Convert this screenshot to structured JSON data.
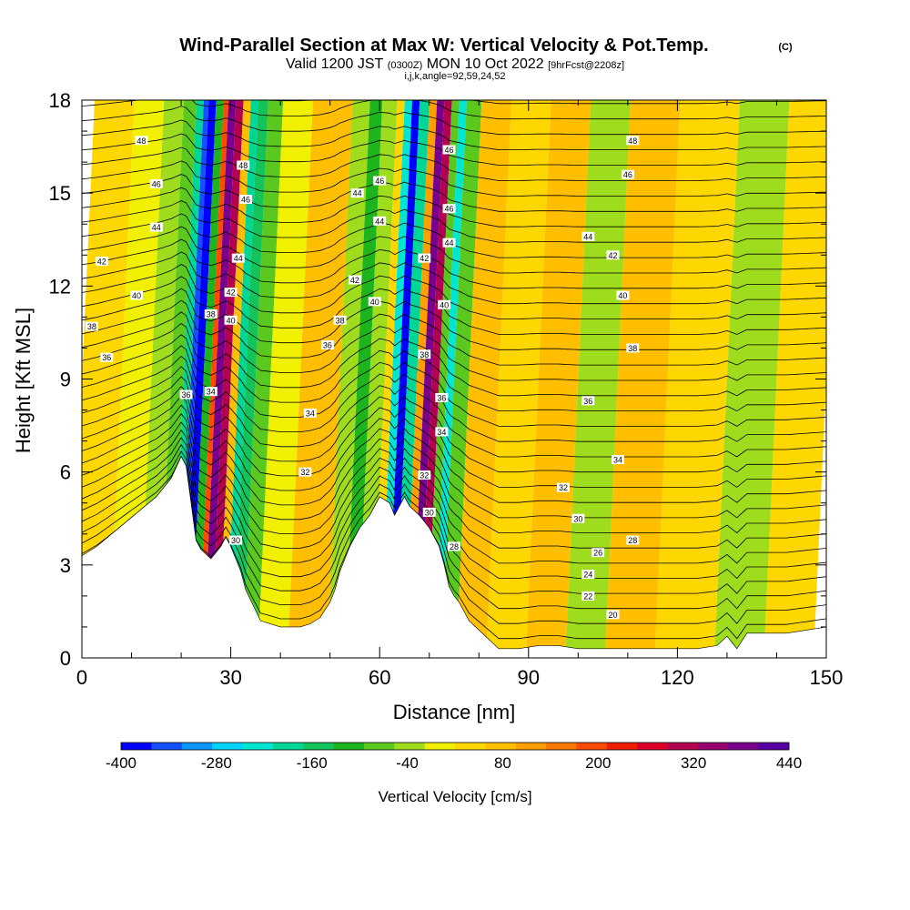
{
  "header": {
    "title": "Wind-Parallel Section at Max W: Vertical Velocity & Pot.Temp.",
    "copyright": "(C)",
    "valid_prefix": "Valid 1200 JST",
    "valid_utc": "(0300Z)",
    "valid_date": "MON 10 Oct 2022",
    "forecast": "[9hrFcst@2208z]",
    "params": "i,j,k,angle=92,59,24,52"
  },
  "chart_data": {
    "type": "heatmap",
    "xlabel": "Distance [nm]",
    "ylabel": "Height [Kft MSL]",
    "xlim": [
      0,
      150
    ],
    "ylim": [
      0,
      18
    ],
    "x_ticks": [
      0,
      30,
      60,
      90,
      120,
      150
    ],
    "y_ticks": [
      0,
      3,
      6,
      9,
      12,
      15,
      18
    ],
    "colorbar": {
      "label": "Vertical Velocity [cm/s]",
      "tick_labels": [
        "-400",
        "-280",
        "-160",
        "-40",
        "80",
        "200",
        "320",
        "440"
      ],
      "colors": [
        "#0000ff",
        "#1450ff",
        "#0a96ff",
        "#00d2ff",
        "#00e6d2",
        "#00d796",
        "#14c35a",
        "#1eb41e",
        "#5ac81e",
        "#a0dc1e",
        "#f0f000",
        "#ffd700",
        "#ffbe00",
        "#ffa000",
        "#ff7800",
        "#ff4b00",
        "#f01e00",
        "#dc0028",
        "#b40050",
        "#96006e",
        "#78008c",
        "#5a00a0"
      ]
    },
    "w_cells": {
      "note_units": "cm/s",
      "bands_x": [
        0,
        8,
        14,
        18,
        20.5,
        22,
        23,
        24.5,
        26,
        27,
        28.5,
        30,
        31.5,
        33,
        35,
        38,
        44,
        48,
        52,
        55.5,
        58,
        61,
        62.5,
        64,
        65.5,
        67.5,
        69,
        70.5,
        72,
        73.5,
        75,
        78,
        84,
        92,
        100,
        108,
        118,
        130,
        140,
        150
      ],
      "bands_w": [
        40,
        0,
        -20,
        -80,
        -200,
        -340,
        -400,
        -100,
        200,
        380,
        300,
        60,
        -200,
        -160,
        -60,
        0,
        60,
        80,
        -40,
        -120,
        -20,
        40,
        -220,
        -400,
        -200,
        120,
        380,
        300,
        -60,
        -240,
        -60,
        60,
        20,
        60,
        -40,
        60,
        20,
        -40,
        40
      ]
    },
    "terrain_kft": {
      "x": [
        0,
        3,
        6,
        9,
        12,
        15,
        18,
        20,
        21,
        22,
        23,
        24,
        26,
        28,
        29,
        30,
        31,
        32,
        33,
        36,
        40,
        44,
        46,
        48,
        50,
        51,
        52,
        54,
        56,
        58,
        60,
        62,
        63,
        64,
        65,
        66,
        68,
        70,
        72,
        73,
        74,
        75,
        76,
        78,
        80,
        82,
        84,
        88,
        92,
        96,
        100,
        104,
        108,
        112,
        116,
        120,
        124,
        128,
        130,
        131,
        132,
        134,
        138,
        142,
        146,
        150
      ],
      "y": [
        3.3,
        3.6,
        4.0,
        4.4,
        4.8,
        5.2,
        5.8,
        6.5,
        6.2,
        5.0,
        3.8,
        3.5,
        3.2,
        3.6,
        3.9,
        3.6,
        3.2,
        2.8,
        2.2,
        1.2,
        1.0,
        1.0,
        1.1,
        1.3,
        1.8,
        2.2,
        2.8,
        3.6,
        4.2,
        4.6,
        5.2,
        5.0,
        4.6,
        4.9,
        5.2,
        4.9,
        4.6,
        4.2,
        3.6,
        3.0,
        2.3,
        2.0,
        1.8,
        1.2,
        0.9,
        0.6,
        0.3,
        0.3,
        0.4,
        0.4,
        0.3,
        0.3,
        0.3,
        0.3,
        0.3,
        0.3,
        0.3,
        0.4,
        0.7,
        0.5,
        0.3,
        0.8,
        0.8,
        0.8,
        0.9,
        1.0
      ]
    },
    "theta_contours": {
      "levels": [
        20,
        22,
        24,
        26,
        28,
        30,
        32,
        34,
        36,
        38,
        40,
        42,
        44,
        46,
        48
      ],
      "labels": [
        {
          "text": "48",
          "x": 12,
          "y": 16.7
        },
        {
          "text": "46",
          "x": 15,
          "y": 15.3
        },
        {
          "text": "44",
          "x": 15,
          "y": 13.9
        },
        {
          "text": "42",
          "x": 4,
          "y": 12.8
        },
        {
          "text": "40",
          "x": 11,
          "y": 11.7
        },
        {
          "text": "38",
          "x": 2,
          "y": 10.7
        },
        {
          "text": "36",
          "x": 5,
          "y": 9.7
        },
        {
          "text": "36",
          "x": 21,
          "y": 8.5
        },
        {
          "text": "34",
          "x": 26,
          "y": 8.6
        },
        {
          "text": "38",
          "x": 26,
          "y": 11.1
        },
        {
          "text": "40",
          "x": 30,
          "y": 10.9
        },
        {
          "text": "42",
          "x": 30,
          "y": 11.8
        },
        {
          "text": "44",
          "x": 31.5,
          "y": 12.9
        },
        {
          "text": "46",
          "x": 33,
          "y": 14.8
        },
        {
          "text": "48",
          "x": 32.5,
          "y": 15.9
        },
        {
          "text": "30",
          "x": 31,
          "y": 3.8
        },
        {
          "text": "32",
          "x": 45,
          "y": 6.0
        },
        {
          "text": "34",
          "x": 46,
          "y": 7.9
        },
        {
          "text": "36",
          "x": 49.5,
          "y": 10.1
        },
        {
          "text": "38",
          "x": 52,
          "y": 10.9
        },
        {
          "text": "42",
          "x": 55,
          "y": 12.2
        },
        {
          "text": "44",
          "x": 55.5,
          "y": 15.0
        },
        {
          "text": "46",
          "x": 60,
          "y": 15.4
        },
        {
          "text": "44",
          "x": 60,
          "y": 14.1
        },
        {
          "text": "40",
          "x": 59,
          "y": 11.5
        },
        {
          "text": "42",
          "x": 69,
          "y": 12.9
        },
        {
          "text": "38",
          "x": 69,
          "y": 9.8
        },
        {
          "text": "36",
          "x": 72.5,
          "y": 8.4
        },
        {
          "text": "34",
          "x": 72.5,
          "y": 7.3
        },
        {
          "text": "32",
          "x": 69,
          "y": 5.9
        },
        {
          "text": "30",
          "x": 70,
          "y": 4.7
        },
        {
          "text": "28",
          "x": 75,
          "y": 3.6
        },
        {
          "text": "40",
          "x": 73,
          "y": 11.4
        },
        {
          "text": "44",
          "x": 74,
          "y": 13.4
        },
        {
          "text": "46",
          "x": 74,
          "y": 14.5
        },
        {
          "text": "46",
          "x": 74,
          "y": 16.4
        },
        {
          "text": "48",
          "x": 111,
          "y": 16.7
        },
        {
          "text": "46",
          "x": 110,
          "y": 15.6
        },
        {
          "text": "44",
          "x": 102,
          "y": 13.6
        },
        {
          "text": "42",
          "x": 107,
          "y": 13.0
        },
        {
          "text": "40",
          "x": 109,
          "y": 11.7
        },
        {
          "text": "38",
          "x": 111,
          "y": 10.0
        },
        {
          "text": "36",
          "x": 102,
          "y": 8.3
        },
        {
          "text": "34",
          "x": 108,
          "y": 6.4
        },
        {
          "text": "32",
          "x": 97,
          "y": 5.5
        },
        {
          "text": "30",
          "x": 100,
          "y": 4.5
        },
        {
          "text": "28",
          "x": 111,
          "y": 3.8
        },
        {
          "text": "26",
          "x": 104,
          "y": 3.4
        },
        {
          "text": "24",
          "x": 102,
          "y": 2.7
        },
        {
          "text": "22",
          "x": 102,
          "y": 2.0
        },
        {
          "text": "20",
          "x": 107,
          "y": 1.4
        }
      ]
    }
  }
}
